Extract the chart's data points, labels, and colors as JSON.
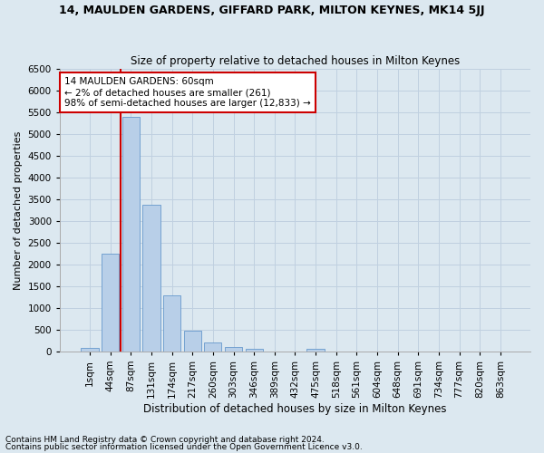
{
  "title": "14, MAULDEN GARDENS, GIFFARD PARK, MILTON KEYNES, MK14 5JJ",
  "subtitle": "Size of property relative to detached houses in Milton Keynes",
  "xlabel": "Distribution of detached houses by size in Milton Keynes",
  "ylabel": "Number of detached properties",
  "footnote1": "Contains HM Land Registry data © Crown copyright and database right 2024.",
  "footnote2": "Contains public sector information licensed under the Open Government Licence v3.0.",
  "bin_labels": [
    "1sqm",
    "44sqm",
    "87sqm",
    "131sqm",
    "174sqm",
    "217sqm",
    "260sqm",
    "303sqm",
    "346sqm",
    "389sqm",
    "432sqm",
    "475sqm",
    "518sqm",
    "561sqm",
    "604sqm",
    "648sqm",
    "691sqm",
    "734sqm",
    "777sqm",
    "820sqm",
    "863sqm"
  ],
  "bar_values": [
    75,
    2250,
    5400,
    3380,
    1280,
    480,
    200,
    90,
    50,
    5,
    5,
    60,
    5,
    0,
    0,
    0,
    0,
    0,
    0,
    0,
    0
  ],
  "bar_color": "#b8cfe8",
  "bar_edgecolor": "#6699cc",
  "grid_color": "#c0d0e0",
  "bg_color": "#dce8f0",
  "vline_color": "#cc0000",
  "annotation_text": "14 MAULDEN GARDENS: 60sqm\n← 2% of detached houses are smaller (261)\n98% of semi-detached houses are larger (12,833) →",
  "annotation_box_facecolor": "#ffffff",
  "annotation_box_edgecolor": "#cc0000",
  "ylim": [
    0,
    6500
  ],
  "yticks": [
    0,
    500,
    1000,
    1500,
    2000,
    2500,
    3000,
    3500,
    4000,
    4500,
    5000,
    5500,
    6000,
    6500
  ],
  "title_fontsize": 9,
  "subtitle_fontsize": 8.5,
  "ylabel_fontsize": 8,
  "xlabel_fontsize": 8.5,
  "tick_fontsize": 7.5,
  "annot_fontsize": 7.5,
  "footnote_fontsize": 6.5
}
